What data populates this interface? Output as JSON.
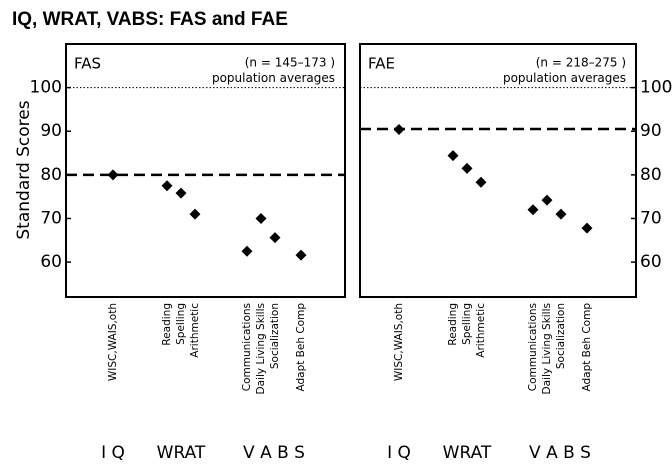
{
  "title": "IQ, WRAT, VABS:  FAS and FAE",
  "y_axis_label": "Standard Scores",
  "chart_data": [
    {
      "type": "dot",
      "panel_label": "FAS",
      "n_label": "(n = 145–173 )",
      "population_average": 100,
      "population_label": "population averages",
      "reference_line": 80,
      "ylim": [
        52,
        110
      ],
      "yticks": [
        60,
        70,
        80,
        90,
        100
      ],
      "ytick_side": "left",
      "color": "#000000",
      "groups": [
        {
          "label": "I Q",
          "categories": [
            "WISC,WAIS,oth"
          ],
          "values": [
            80
          ]
        },
        {
          "label": "WRAT",
          "categories": [
            "Reading",
            "Spelling",
            "Arithmetic"
          ],
          "values": [
            77.5,
            75.8,
            71
          ]
        },
        {
          "label": "V A B S",
          "categories": [
            "Communications",
            "Daily Living Skills",
            "Socialization",
            "Adapt Beh Comp"
          ],
          "values": [
            62.5,
            70,
            65.6,
            61.6
          ]
        }
      ]
    },
    {
      "type": "dot",
      "panel_label": "FAE",
      "n_label": "(n = 218–275 )",
      "population_average": 100,
      "population_label": "population averages",
      "reference_line": 90.5,
      "ylim": [
        52,
        110
      ],
      "yticks": [
        60,
        70,
        80,
        90,
        100
      ],
      "ytick_side": "right",
      "color": "#000000",
      "groups": [
        {
          "label": "I Q",
          "categories": [
            "WISC,WAIS,oth"
          ],
          "values": [
            90.4
          ]
        },
        {
          "label": "WRAT",
          "categories": [
            "Reading",
            "Spelling",
            "Arithmetic"
          ],
          "values": [
            84.4,
            81.5,
            78.3
          ]
        },
        {
          "label": "V A B S",
          "categories": [
            "Communications",
            "Daily Living Skills",
            "Socialization",
            "Adapt Beh Comp"
          ],
          "values": [
            72,
            74.2,
            71,
            67.8
          ]
        }
      ]
    }
  ]
}
